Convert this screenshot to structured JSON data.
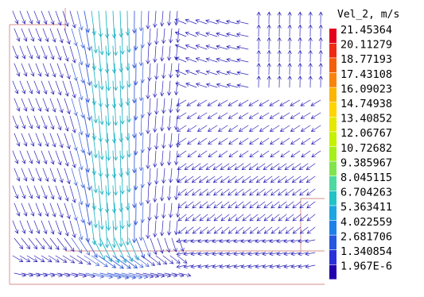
{
  "chart_data": {
    "type": "vector-field",
    "title": "",
    "xlabel": "",
    "ylabel": "",
    "grid": false,
    "legend": {
      "title": "Vel_2, m/s",
      "placement": "right",
      "labels": [
        "21.45364",
        "20.11279",
        "18.77193",
        "17.43108",
        "16.09023",
        "14.74938",
        "13.40852",
        "12.06767",
        "10.72682",
        "9.385967",
        "8.045115",
        "6.704263",
        "5.363411",
        "4.022559",
        "2.681706",
        "1.340854",
        "1.967E-6"
      ],
      "values": [
        21.45364,
        20.11279,
        18.77193,
        17.43108,
        16.09023,
        14.74938,
        13.40852,
        12.06767,
        10.72682,
        9.385967,
        8.045115,
        6.704263,
        5.363411,
        4.022559,
        2.681706,
        1.340854,
        1.967e-06
      ],
      "colors": [
        "#e4001b",
        "#ef2a12",
        "#f35e0c",
        "#f9840d",
        "#fcb500",
        "#ffd400",
        "#e5e800",
        "#c4f200",
        "#a6ee1c",
        "#80e44e",
        "#4ed8a2",
        "#22c2c7",
        "#1ea6e0",
        "#1f80e8",
        "#2657e0",
        "#2a30d8",
        "#2200ad"
      ]
    },
    "vector_colors": {
      "low": "#2a22b8",
      "mid": "#3c60d8",
      "high": "#2ab7c8"
    }
  }
}
